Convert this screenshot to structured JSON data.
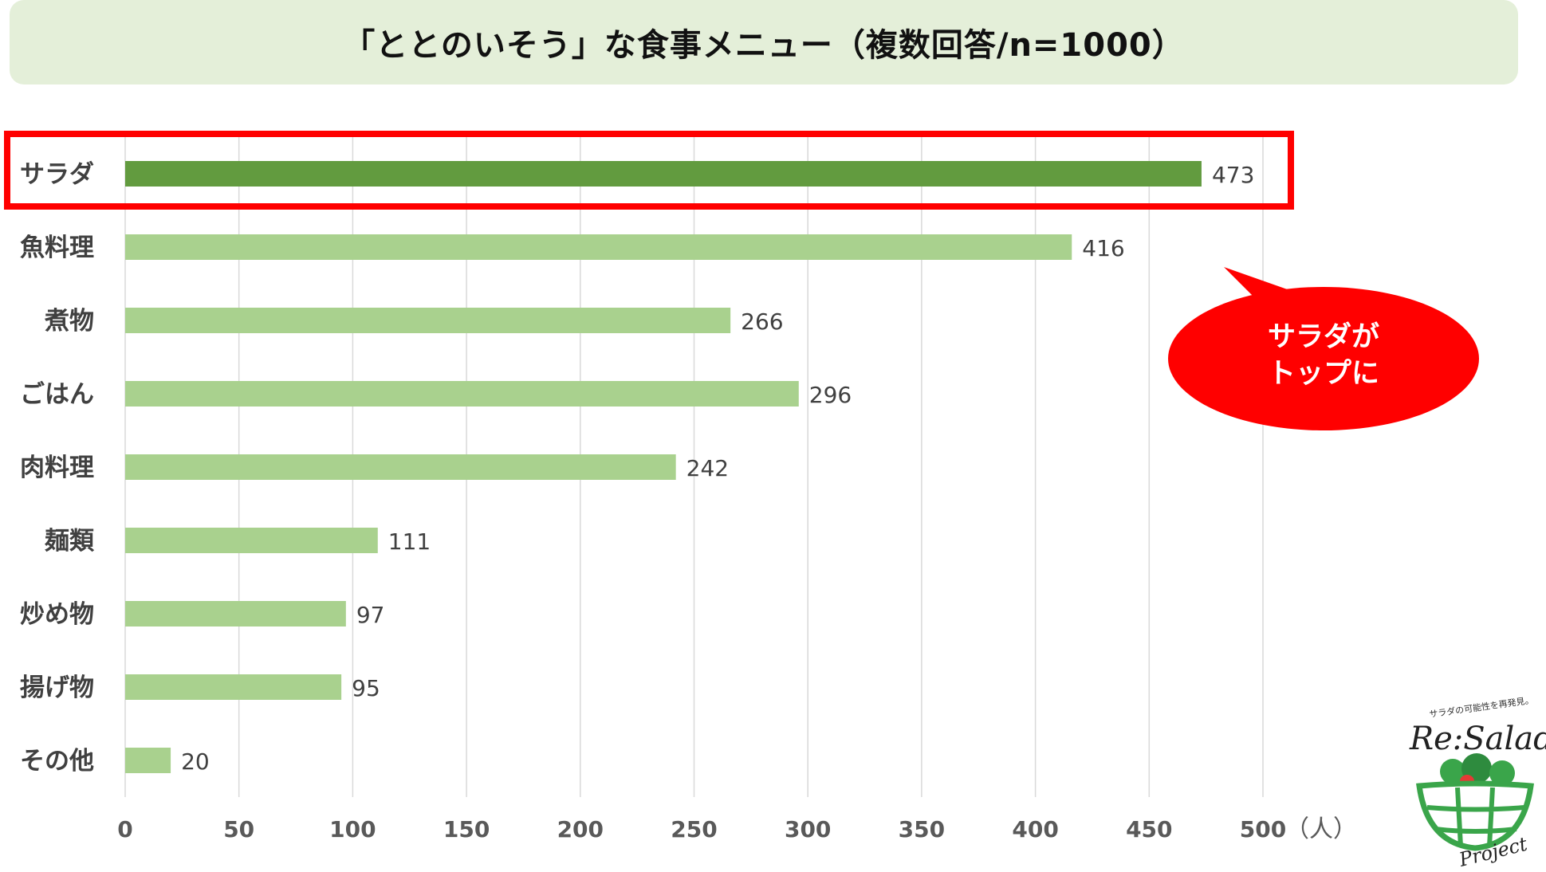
{
  "chart_data": {
    "type": "bar",
    "orientation": "horizontal",
    "title": "「ととのいそう」な食事メニュー（複数回答/n=1000）",
    "categories": [
      "サラダ",
      "魚料理",
      "煮物",
      "ごはん",
      "肉料理",
      "麺類",
      "炒め物",
      "揚げ物",
      "その他"
    ],
    "values": [
      473,
      416,
      266,
      296,
      242,
      111,
      97,
      95,
      20
    ],
    "xlim": [
      0,
      500
    ],
    "xticks": [
      0,
      50,
      100,
      150,
      200,
      250,
      300,
      350,
      400,
      450,
      500
    ],
    "xunit": "（人）",
    "grid": true,
    "highlight_category": "サラダ",
    "colors": {
      "highlight_bar": "#629b3f",
      "bar": "#a9d18e",
      "highlight_frame": "#ff0000",
      "grid": "#d9d9d9"
    }
  },
  "callout": {
    "text_lines": [
      "サラダが",
      "トップに"
    ],
    "color": "#ff0000"
  },
  "logo": {
    "tagline": "サラダの可能性を再発見。",
    "name": "Re:Salad",
    "sub": "Project",
    "color": "#3aa54a"
  }
}
